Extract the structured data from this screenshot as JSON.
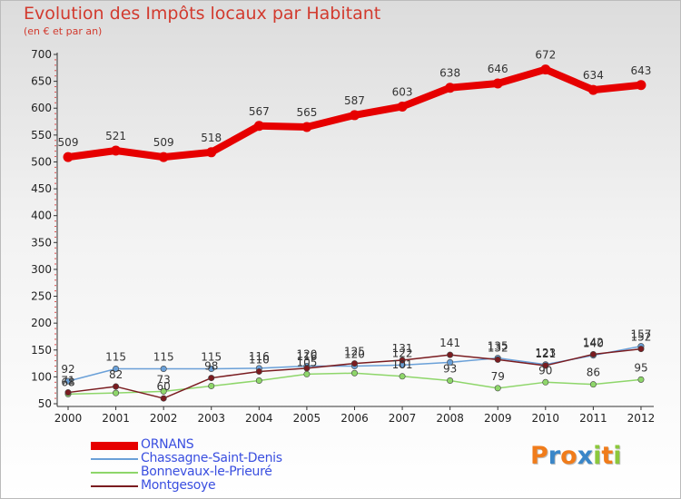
{
  "chart_data": {
    "type": "line",
    "title": "Evolution des Impôts locaux par Habitant",
    "subtitle": "(en € et par an)",
    "xlabel": "",
    "ylabel": "",
    "categories": [
      "2000",
      "2001",
      "2002",
      "2003",
      "2004",
      "2005",
      "2006",
      "2007",
      "2008",
      "2009",
      "2010",
      "2011",
      "2012"
    ],
    "ylim": [
      50,
      700
    ],
    "yticks": [
      "50",
      "100",
      "150",
      "200",
      "250",
      "300",
      "350",
      "400",
      "450",
      "500",
      "550",
      "600",
      "650",
      "700"
    ],
    "series": [
      {
        "name": "ORNANS",
        "color": "#e60000",
        "values": [
          509,
          521,
          509,
          518,
          567,
          565,
          587,
          603,
          638,
          646,
          672,
          634,
          643
        ],
        "labels": [
          "509",
          "521",
          "509",
          "518",
          "567",
          "565",
          "587",
          "603",
          "638",
          "646",
          "672",
          "634",
          "643"
        ]
      },
      {
        "name": "Chassagne-Saint-Denis",
        "color": "#6aa0d8",
        "values": [
          92,
          115,
          115,
          115,
          116,
          120,
          120,
          122,
          127,
          135,
          123,
          140,
          157
        ],
        "labels": [
          "92",
          "115",
          "115",
          "115",
          "116",
          "120",
          "120",
          "122",
          "",
          "135",
          "123",
          "140",
          "157"
        ]
      },
      {
        "name": "Bonnevaux-le-Prieuré",
        "color": "#8ed66a",
        "values": [
          68,
          70,
          73,
          83,
          93,
          105,
          107,
          101,
          93,
          79,
          90,
          86,
          95
        ],
        "labels": [
          "68",
          "",
          "73",
          "",
          "",
          "105",
          "",
          "101",
          "93",
          "79",
          "90",
          "86",
          "95"
        ]
      },
      {
        "name": "Montgesoye",
        "color": "#7a1c20",
        "values": [
          71,
          82,
          60,
          98,
          110,
          116,
          125,
          131,
          141,
          132,
          121,
          142,
          152
        ],
        "labels": [
          "71",
          "82",
          "60",
          "98",
          "110",
          "116",
          "125",
          "131",
          "141",
          "132",
          "121",
          "142",
          "152"
        ]
      }
    ],
    "legend_position": "bottom-left"
  },
  "legend": {
    "items": [
      {
        "label": "ORNANS",
        "color": "#e60000"
      },
      {
        "label": "Chassagne-Saint-Denis",
        "color": "#6aa0d8"
      },
      {
        "label": "Bonnevaux-le-Prieuré",
        "color": "#8ed66a"
      },
      {
        "label": "Montgesoye",
        "color": "#7a1c20"
      }
    ]
  },
  "logo": {
    "letters": [
      "P",
      "r",
      "o",
      "x",
      "i",
      "t",
      "i"
    ],
    "colors": [
      "#f07c1b",
      "#3a86c8",
      "#f07c1b",
      "#3a86c8",
      "#8cc83c",
      "#f07c1b",
      "#8cc83c"
    ]
  }
}
